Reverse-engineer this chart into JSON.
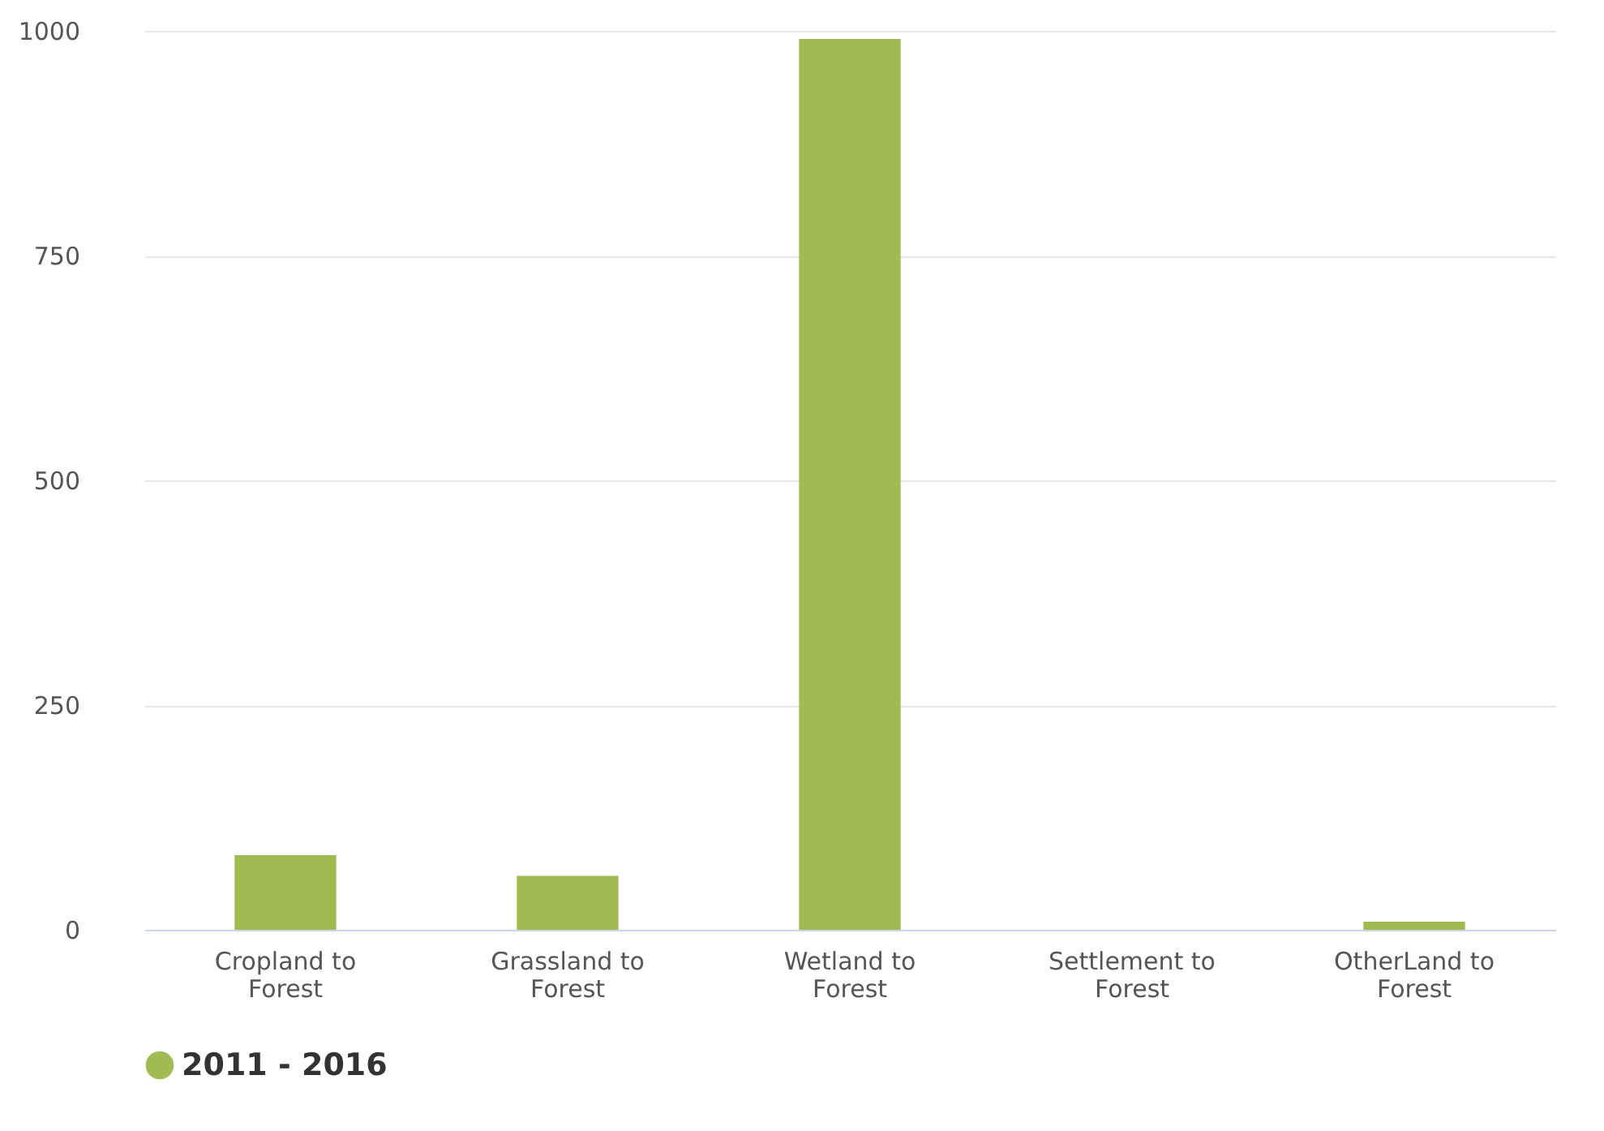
{
  "chart_data": {
    "type": "bar",
    "categories": [
      "Cropland to Forest",
      "Grassland to Forest",
      "Wetland to Forest",
      "Settlement to Forest",
      "OtherLand to Forest"
    ],
    "series": [
      {
        "name": "2011 - 2016",
        "color": "#9fbb51",
        "values": [
          83,
          60,
          991,
          0,
          9
        ]
      }
    ],
    "ylim": [
      0,
      1000
    ],
    "yticks": [
      0,
      250,
      500,
      750,
      1000
    ],
    "grid": "y",
    "legend": "bottom"
  }
}
